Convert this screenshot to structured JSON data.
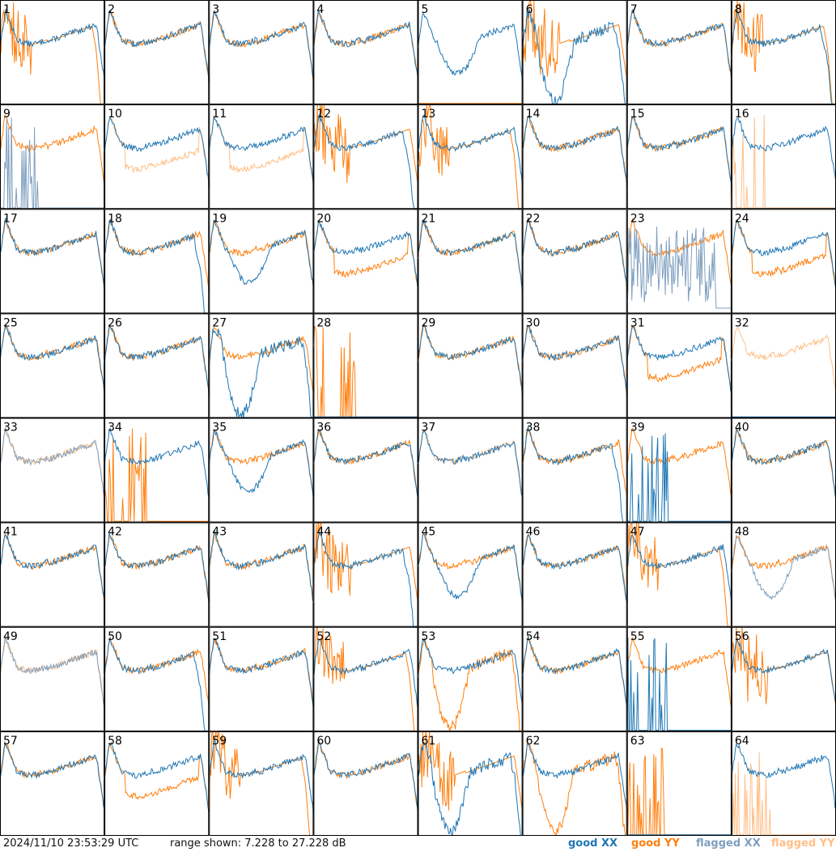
{
  "footer": {
    "timestamp": "2024/11/10 23:53:29 UTC",
    "range": "range shown: 7.228 to 27.228 dB"
  },
  "legend": [
    {
      "label": "good XX",
      "color": "#1f77b4"
    },
    {
      "label": "good YY",
      "color": "#ff7f0e"
    },
    {
      "label": "flagged XX",
      "color": "#7f9fbf"
    },
    {
      "label": "flagged YY",
      "color": "#ffbf87"
    }
  ],
  "chart_data": {
    "type": "line",
    "layout": "small-multiples",
    "rows": 8,
    "cols": 8,
    "ylim": [
      7.228,
      27.228
    ],
    "y_units": "dB",
    "colors": {
      "good_xx": "#1f77b4",
      "good_yy": "#ff7f0e",
      "flagged_xx": "#7f9fbf",
      "flagged_yy": "#ffbf87"
    },
    "panels": [
      {
        "id": "1",
        "xx": {
          "status": "good",
          "shape": "standard"
        },
        "yy": {
          "status": "good",
          "shape": "spiky_dropoff"
        }
      },
      {
        "id": "2",
        "xx": {
          "status": "good",
          "shape": "standard"
        },
        "yy": {
          "status": "good",
          "shape": "standard"
        }
      },
      {
        "id": "3",
        "xx": {
          "status": "good",
          "shape": "standard"
        },
        "yy": {
          "status": "good",
          "shape": "standard"
        }
      },
      {
        "id": "4",
        "xx": {
          "status": "good",
          "shape": "standard"
        },
        "yy": {
          "status": "good",
          "shape": "standard"
        }
      },
      {
        "id": "5",
        "xx": {
          "status": "good",
          "shape": "dip"
        },
        "yy": {
          "status": "good",
          "shape": "flat_low"
        }
      },
      {
        "id": "6",
        "xx": {
          "status": "good",
          "shape": "deep_dip"
        },
        "yy": {
          "status": "good",
          "shape": "spiky_high"
        }
      },
      {
        "id": "7",
        "xx": {
          "status": "good",
          "shape": "standard"
        },
        "yy": {
          "status": "good",
          "shape": "standard"
        }
      },
      {
        "id": "8",
        "xx": {
          "status": "good",
          "shape": "dropoff"
        },
        "yy": {
          "status": "good",
          "shape": "spiky_dropoff"
        }
      },
      {
        "id": "9",
        "xx": {
          "status": "flagged",
          "shape": "sparse_spikes"
        },
        "yy": {
          "status": "good",
          "shape": "standard"
        }
      },
      {
        "id": "10",
        "xx": {
          "status": "good",
          "shape": "standard"
        },
        "yy": {
          "status": "flagged",
          "shape": "low_mid"
        }
      },
      {
        "id": "11",
        "xx": {
          "status": "good",
          "shape": "standard"
        },
        "yy": {
          "status": "flagged",
          "shape": "low_mid"
        }
      },
      {
        "id": "12",
        "xx": {
          "status": "good",
          "shape": "dropoff"
        },
        "yy": {
          "status": "good",
          "shape": "spiky_high"
        }
      },
      {
        "id": "13",
        "xx": {
          "status": "good",
          "shape": "standard"
        },
        "yy": {
          "status": "good",
          "shape": "spiky_dropoff"
        }
      },
      {
        "id": "14",
        "xx": {
          "status": "good",
          "shape": "standard"
        },
        "yy": {
          "status": "good",
          "shape": "standard"
        }
      },
      {
        "id": "15",
        "xx": {
          "status": "good",
          "shape": "standard"
        },
        "yy": {
          "status": "good",
          "shape": "standard"
        }
      },
      {
        "id": "16",
        "xx": {
          "status": "good",
          "shape": "standard"
        },
        "yy": {
          "status": "flagged",
          "shape": "sparse_spikes"
        }
      },
      {
        "id": "17",
        "xx": {
          "status": "good",
          "shape": "standard"
        },
        "yy": {
          "status": "good",
          "shape": "standard"
        }
      },
      {
        "id": "18",
        "xx": {
          "status": "good",
          "shape": "dropoff"
        },
        "yy": {
          "status": "good",
          "shape": "standard"
        }
      },
      {
        "id": "19",
        "xx": {
          "status": "good",
          "shape": "dip"
        },
        "yy": {
          "status": "good",
          "shape": "standard"
        }
      },
      {
        "id": "20",
        "xx": {
          "status": "good",
          "shape": "standard"
        },
        "yy": {
          "status": "good",
          "shape": "low_mid"
        }
      },
      {
        "id": "21",
        "xx": {
          "status": "good",
          "shape": "standard"
        },
        "yy": {
          "status": "good",
          "shape": "standard"
        }
      },
      {
        "id": "22",
        "xx": {
          "status": "good",
          "shape": "standard"
        },
        "yy": {
          "status": "good",
          "shape": "standard"
        }
      },
      {
        "id": "23",
        "xx": {
          "status": "flagged",
          "shape": "noise"
        },
        "yy": {
          "status": "good",
          "shape": "standard"
        }
      },
      {
        "id": "24",
        "xx": {
          "status": "good",
          "shape": "standard"
        },
        "yy": {
          "status": "good",
          "shape": "low_mid"
        }
      },
      {
        "id": "25",
        "xx": {
          "status": "good",
          "shape": "standard"
        },
        "yy": {
          "status": "good",
          "shape": "standard"
        }
      },
      {
        "id": "26",
        "xx": {
          "status": "good",
          "shape": "standard"
        },
        "yy": {
          "status": "good",
          "shape": "standard"
        }
      },
      {
        "id": "27",
        "xx": {
          "status": "good",
          "shape": "deep_dip"
        },
        "yy": {
          "status": "good",
          "shape": "standard"
        }
      },
      {
        "id": "28",
        "xx": {
          "status": "good",
          "shape": "flat_low"
        },
        "yy": {
          "status": "good",
          "shape": "sparse_spikes"
        }
      },
      {
        "id": "29",
        "xx": {
          "status": "good",
          "shape": "standard"
        },
        "yy": {
          "status": "good",
          "shape": "standard"
        }
      },
      {
        "id": "30",
        "xx": {
          "status": "good",
          "shape": "standard"
        },
        "yy": {
          "status": "good",
          "shape": "standard"
        }
      },
      {
        "id": "31",
        "xx": {
          "status": "good",
          "shape": "standard"
        },
        "yy": {
          "status": "good",
          "shape": "low_mid"
        }
      },
      {
        "id": "32",
        "xx": {
          "status": "good",
          "shape": "flat_low"
        },
        "yy": {
          "status": "flagged",
          "shape": "standard"
        }
      },
      {
        "id": "33",
        "xx": {
          "status": "flagged",
          "shape": "standard"
        },
        "yy": {
          "status": "flagged",
          "shape": "standard"
        }
      },
      {
        "id": "34",
        "xx": {
          "status": "good",
          "shape": "standard"
        },
        "yy": {
          "status": "good",
          "shape": "sparse_spikes"
        }
      },
      {
        "id": "35",
        "xx": {
          "status": "good",
          "shape": "dip"
        },
        "yy": {
          "status": "good",
          "shape": "standard"
        }
      },
      {
        "id": "36",
        "xx": {
          "status": "good",
          "shape": "standard"
        },
        "yy": {
          "status": "good",
          "shape": "standard"
        }
      },
      {
        "id": "37",
        "xx": {
          "status": "good",
          "shape": "standard"
        },
        "yy": {
          "status": "flagged",
          "shape": "standard"
        }
      },
      {
        "id": "38",
        "xx": {
          "status": "good",
          "shape": "dropoff"
        },
        "yy": {
          "status": "good",
          "shape": "standard"
        }
      },
      {
        "id": "39",
        "xx": {
          "status": "good",
          "shape": "sparse_spikes"
        },
        "yy": {
          "status": "good",
          "shape": "standard"
        }
      },
      {
        "id": "40",
        "xx": {
          "status": "good",
          "shape": "standard"
        },
        "yy": {
          "status": "good",
          "shape": "standard"
        }
      },
      {
        "id": "41",
        "xx": {
          "status": "good",
          "shape": "standard"
        },
        "yy": {
          "status": "good",
          "shape": "standard"
        }
      },
      {
        "id": "42",
        "xx": {
          "status": "good",
          "shape": "standard"
        },
        "yy": {
          "status": "good",
          "shape": "standard"
        }
      },
      {
        "id": "43",
        "xx": {
          "status": "good",
          "shape": "standard"
        },
        "yy": {
          "status": "good",
          "shape": "standard"
        }
      },
      {
        "id": "44",
        "xx": {
          "status": "good",
          "shape": "dropoff"
        },
        "yy": {
          "status": "good",
          "shape": "spiky_high"
        }
      },
      {
        "id": "45",
        "xx": {
          "status": "good",
          "shape": "dip"
        },
        "yy": {
          "status": "good",
          "shape": "standard"
        }
      },
      {
        "id": "46",
        "xx": {
          "status": "good",
          "shape": "standard"
        },
        "yy": {
          "status": "good",
          "shape": "standard"
        }
      },
      {
        "id": "47",
        "xx": {
          "status": "good",
          "shape": "standard"
        },
        "yy": {
          "status": "good",
          "shape": "spiky_dropoff"
        }
      },
      {
        "id": "48",
        "xx": {
          "status": "flagged",
          "shape": "dip"
        },
        "yy": {
          "status": "good",
          "shape": "standard"
        }
      },
      {
        "id": "49",
        "xx": {
          "status": "flagged",
          "shape": "standard"
        },
        "yy": {
          "status": "flagged",
          "shape": "standard"
        }
      },
      {
        "id": "50",
        "xx": {
          "status": "good",
          "shape": "dropoff"
        },
        "yy": {
          "status": "good",
          "shape": "standard"
        }
      },
      {
        "id": "51",
        "xx": {
          "status": "good",
          "shape": "standard"
        },
        "yy": {
          "status": "good",
          "shape": "standard"
        }
      },
      {
        "id": "52",
        "xx": {
          "status": "good",
          "shape": "standard"
        },
        "yy": {
          "status": "good",
          "shape": "spiky_dropoff"
        }
      },
      {
        "id": "53",
        "xx": {
          "status": "good",
          "shape": "standard"
        },
        "yy": {
          "status": "good",
          "shape": "deep_dip"
        }
      },
      {
        "id": "54",
        "xx": {
          "status": "good",
          "shape": "standard"
        },
        "yy": {
          "status": "good",
          "shape": "standard"
        }
      },
      {
        "id": "55",
        "xx": {
          "status": "good",
          "shape": "sparse_spikes"
        },
        "yy": {
          "status": "good",
          "shape": "standard"
        }
      },
      {
        "id": "56",
        "xx": {
          "status": "good",
          "shape": "standard"
        },
        "yy": {
          "status": "good",
          "shape": "spiky_high"
        }
      },
      {
        "id": "57",
        "xx": {
          "status": "good",
          "shape": "standard"
        },
        "yy": {
          "status": "good",
          "shape": "standard"
        }
      },
      {
        "id": "58",
        "xx": {
          "status": "good",
          "shape": "standard"
        },
        "yy": {
          "status": "good",
          "shape": "low_mid"
        }
      },
      {
        "id": "59",
        "xx": {
          "status": "good",
          "shape": "standard"
        },
        "yy": {
          "status": "good",
          "shape": "spiky_dropoff"
        }
      },
      {
        "id": "60",
        "xx": {
          "status": "good",
          "shape": "standard"
        },
        "yy": {
          "status": "good",
          "shape": "standard"
        }
      },
      {
        "id": "61",
        "xx": {
          "status": "good",
          "shape": "deep_dip"
        },
        "yy": {
          "status": "good",
          "shape": "spiky_high"
        }
      },
      {
        "id": "62",
        "xx": {
          "status": "good",
          "shape": "standard"
        },
        "yy": {
          "status": "good",
          "shape": "deep_dip"
        }
      },
      {
        "id": "63",
        "xx": {
          "status": "good",
          "shape": "flat_low"
        },
        "yy": {
          "status": "good",
          "shape": "sparse_spikes"
        }
      },
      {
        "id": "64",
        "xx": {
          "status": "good",
          "shape": "standard"
        },
        "yy": {
          "status": "flagged",
          "shape": "sparse_spikes"
        }
      }
    ]
  }
}
